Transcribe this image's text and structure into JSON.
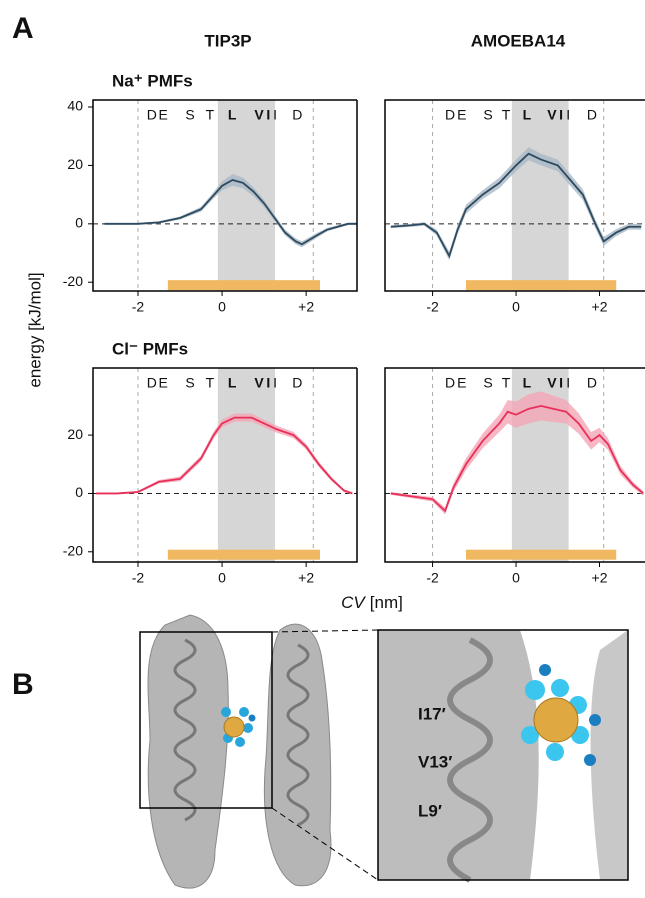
{
  "figure": {
    "panel_a": "A",
    "panel_b": "B",
    "col_titles": [
      "TIP3P",
      "AMOEBA14"
    ],
    "row_titles": [
      "Na⁺ PMFs",
      "Cl⁻ PMFs"
    ],
    "y_label": "energy [kJ/mol]",
    "x_label_var": "CV",
    "x_label_unit": "[nm]",
    "residue_labels": [
      "I17′",
      "V13′",
      "L9′"
    ]
  },
  "chart_data": [
    {
      "type": "line",
      "x": [
        -2.8,
        -2.5,
        -2,
        -1.5,
        -1,
        -0.5,
        -0.25,
        0,
        0.25,
        0.5,
        0.75,
        1,
        1.25,
        1.5,
        1.75,
        1.9,
        2.25,
        2.5,
        2.75,
        3,
        3.2
      ],
      "values": [
        0,
        0,
        0,
        0.5,
        2,
        5,
        9,
        13,
        15,
        14,
        11,
        7,
        2,
        -3,
        -6,
        -7,
        -4,
        -2,
        -1,
        0,
        0
      ],
      "errors": [
        0.3,
        0.3,
        0.3,
        0.4,
        0.5,
        0.8,
        1,
        1.5,
        2,
        1.8,
        1.5,
        1.2,
        1,
        1,
        1,
        1,
        0.8,
        0.6,
        0.5,
        0.4,
        0.4
      ],
      "color": "#2d4a5e",
      "band_color": "#a9b8c6",
      "xlim": [
        -3.07,
        3.21
      ],
      "ylim": [
        -23,
        42.4
      ],
      "xticks": [
        -2,
        0,
        {
          "value": 2,
          "label": "+2"
        }
      ],
      "yticks": [
        -20,
        0,
        20,
        40
      ],
      "hline": 0,
      "vlines": [
        -2,
        2.17
      ],
      "shaded_x": [
        -0.1,
        1.26
      ],
      "bar_x": [
        -1.29,
        2.33
      ],
      "bar_y": -21,
      "bar_color": "#f0b860",
      "annotations": [
        {
          "text": "D",
          "x": -1.67,
          "color": "#222"
        },
        {
          "text": "E",
          "x": -1.4,
          "color": "#222"
        },
        {
          "text": "S",
          "x": -0.76,
          "color": "#222"
        },
        {
          "text": "T",
          "x": -0.29,
          "color": "#222"
        },
        {
          "text": "L",
          "x": 0.24,
          "color": "#1a2fb0"
        },
        {
          "text": "V",
          "x": 0.88,
          "color": "#1a2fb0"
        },
        {
          "text": "I",
          "x": 1.1,
          "color": "#1a2fb0"
        },
        {
          "text": "I",
          "x": 1.26,
          "color": "#222"
        },
        {
          "text": "D",
          "x": 1.79,
          "color": "#222"
        }
      ]
    },
    {
      "type": "line",
      "x": [
        -3,
        -2.5,
        -2.2,
        -1.9,
        -1.6,
        -1.4,
        -1.2,
        -0.8,
        -0.4,
        0,
        0.3,
        0.6,
        1,
        1.3,
        1.6,
        1.9,
        2.1,
        2.4,
        2.7,
        3
      ],
      "values": [
        -1,
        -0.5,
        0,
        -3,
        -11,
        -2,
        5,
        10,
        14,
        20,
        24,
        22,
        20,
        15,
        10,
        0,
        -6,
        -3,
        -1,
        -1
      ],
      "errors": [
        0.5,
        0.5,
        0.6,
        1,
        1.5,
        1.5,
        1.5,
        1.5,
        1.8,
        2,
        2.2,
        2,
        2,
        2,
        1.8,
        1.5,
        1.5,
        1.2,
        1,
        1
      ],
      "color": "#2d4a5e",
      "band_color": "#a9b8c6",
      "xlim": [
        -3.14,
        3.09
      ],
      "ylim": [
        -23,
        42.4
      ],
      "xticks": [
        -2,
        0,
        {
          "value": 2,
          "label": "+2"
        }
      ],
      "hline": 0,
      "vlines": [
        -2,
        2.1
      ],
      "shaded_x": [
        -0.1,
        1.26
      ],
      "bar_x": [
        -1.2,
        2.4
      ],
      "bar_y": -21,
      "bar_color": "#f0b860",
      "annotations": [
        {
          "text": "D",
          "x": -1.58,
          "color": "#222"
        },
        {
          "text": "E",
          "x": -1.3,
          "color": "#222"
        },
        {
          "text": "S",
          "x": -0.67,
          "color": "#222"
        },
        {
          "text": "T",
          "x": -0.24,
          "color": "#222"
        },
        {
          "text": "L",
          "x": 0.26,
          "color": "#1a2fb0"
        },
        {
          "text": "V",
          "x": 0.86,
          "color": "#1a2fb0"
        },
        {
          "text": "I",
          "x": 1.08,
          "color": "#1a2fb0"
        },
        {
          "text": "I",
          "x": 1.25,
          "color": "#222"
        },
        {
          "text": "D",
          "x": 1.82,
          "color": "#222"
        }
      ]
    },
    {
      "type": "line",
      "x": [
        -3,
        -2.5,
        -2,
        -1.5,
        -1,
        -0.5,
        -0.2,
        0,
        0.3,
        0.7,
        1,
        1.3,
        1.7,
        2,
        2.3,
        2.6,
        2.9,
        3.1
      ],
      "values": [
        0,
        0,
        0.5,
        4,
        5,
        12,
        20,
        24,
        26,
        26,
        24,
        22,
        20,
        16,
        10,
        5,
        1,
        0
      ],
      "errors": [
        0.3,
        0.3,
        0.4,
        0.6,
        0.8,
        1,
        1.2,
        1.3,
        1.4,
        1.4,
        1.3,
        1.2,
        1.1,
        1,
        0.9,
        0.7,
        0.5,
        0.4
      ],
      "color": "#e8305a",
      "band_color": "#f4a6b6",
      "xlim": [
        -3.07,
        3.21
      ],
      "ylim": [
        -23.5,
        43
      ],
      "xticks": [
        -2,
        0,
        {
          "value": 2,
          "label": "+2"
        }
      ],
      "yticks": [
        -20,
        0,
        20
      ],
      "hline": 0,
      "vlines": [
        -2,
        2.17
      ],
      "shaded_x": [
        -0.1,
        1.26
      ],
      "bar_x": [
        -1.29,
        2.33
      ],
      "bar_y": -21,
      "bar_color": "#f0b860",
      "annotations": [
        {
          "text": "D",
          "x": -1.67,
          "color": "#222"
        },
        {
          "text": "E",
          "x": -1.4,
          "color": "#222"
        },
        {
          "text": "S",
          "x": -0.76,
          "color": "#222"
        },
        {
          "text": "T",
          "x": -0.29,
          "color": "#222"
        },
        {
          "text": "L",
          "x": 0.24,
          "color": "#1a2fb0"
        },
        {
          "text": "V",
          "x": 0.88,
          "color": "#1a2fb0"
        },
        {
          "text": "I",
          "x": 1.1,
          "color": "#1a2fb0"
        },
        {
          "text": "I",
          "x": 1.26,
          "color": "#222"
        },
        {
          "text": "D",
          "x": 1.79,
          "color": "#222"
        }
      ]
    },
    {
      "type": "line",
      "x": [
        -3,
        -2.5,
        -2,
        -1.7,
        -1.5,
        -1.2,
        -0.8,
        -0.4,
        -0.2,
        0,
        0.3,
        0.6,
        0.9,
        1.2,
        1.5,
        1.8,
        2,
        2.2,
        2.5,
        2.8,
        3.05
      ],
      "values": [
        0,
        -1,
        -2,
        -6,
        2,
        10,
        18,
        24,
        28,
        27,
        29,
        30,
        29,
        28,
        24,
        18,
        20,
        17,
        8,
        3,
        0
      ],
      "errors": [
        0.5,
        0.6,
        0.8,
        1.2,
        1.5,
        2,
        2.5,
        3,
        4,
        4.5,
        5,
        5,
        4.5,
        4,
        3.5,
        3,
        2.5,
        2,
        1.5,
        1,
        0.8
      ],
      "color": "#e8305a",
      "band_color": "#f4a6b6",
      "xlim": [
        -3.14,
        3.09
      ],
      "ylim": [
        -23.5,
        43
      ],
      "xticks": [
        -2,
        0,
        {
          "value": 2,
          "label": "+2"
        }
      ],
      "hline": 0,
      "vlines": [
        -2,
        2.1
      ],
      "shaded_x": [
        -0.1,
        1.26
      ],
      "bar_x": [
        -1.2,
        2.4
      ],
      "bar_y": -21,
      "bar_color": "#f0b860",
      "annotations": [
        {
          "text": "D",
          "x": -1.58,
          "color": "#222"
        },
        {
          "text": "E",
          "x": -1.3,
          "color": "#222"
        },
        {
          "text": "S",
          "x": -0.67,
          "color": "#222"
        },
        {
          "text": "T",
          "x": -0.24,
          "color": "#222"
        },
        {
          "text": "L",
          "x": 0.26,
          "color": "#1a2fb0"
        },
        {
          "text": "V",
          "x": 0.86,
          "color": "#1a2fb0"
        },
        {
          "text": "I",
          "x": 1.08,
          "color": "#1a2fb0"
        },
        {
          "text": "I",
          "x": 1.25,
          "color": "#222"
        },
        {
          "text": "D",
          "x": 1.82,
          "color": "#222"
        }
      ]
    }
  ]
}
